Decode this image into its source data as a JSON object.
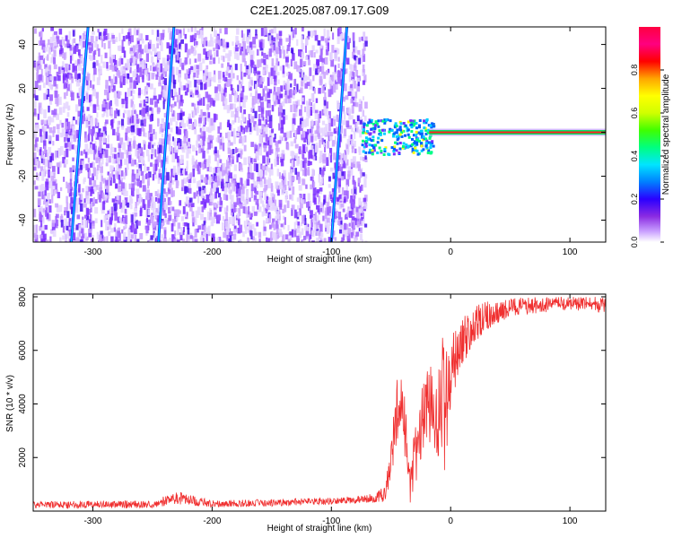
{
  "title": "C2E1.2025.087.09.17.G09",
  "chart_data": [
    {
      "type": "heatmap",
      "xlabel": "Height of straight line (km)",
      "ylabel": "Frequency (Hz)",
      "xlim": [
        -350,
        130
      ],
      "ylim": [
        -50,
        48
      ],
      "xticks": [
        -300,
        -200,
        -100,
        0,
        100
      ],
      "yticks": [
        -40,
        -20,
        0,
        20,
        40
      ],
      "colorbar": {
        "label": "Normalized spectral amplitude",
        "range": [
          0,
          1
        ],
        "ticks": [
          "0.0",
          "0.2",
          "0.4",
          "0.6",
          "0.8"
        ],
        "colormap": [
          "#ffffff",
          "#c9a0ff",
          "#8a2be2",
          "#2a00ff",
          "#0080ff",
          "#00e5ff",
          "#00ff80",
          "#40ff00",
          "#d0ff00",
          "#ffff00",
          "#ffa500",
          "#ff0000",
          "#ff0080",
          "#ff0040"
        ]
      },
      "noise_region_x": [
        -350,
        -72
      ],
      "aliased_lines": [
        {
          "x_start": -318,
          "x_end": -304
        },
        {
          "x_start": -245,
          "x_end": -232
        },
        {
          "x_start": -100,
          "x_end": -87
        }
      ],
      "tone_line": {
        "x_start": -18,
        "x_end": 130,
        "frequency": 0
      }
    },
    {
      "type": "line",
      "xlabel": "Height of straight line (km)",
      "ylabel": "SNR (10 * v/v)",
      "xlim": [
        -350,
        130
      ],
      "ylim": [
        0,
        8100
      ],
      "xticks": [
        -300,
        -200,
        -100,
        0,
        100
      ],
      "yticks": [
        2000,
        4000,
        6000,
        8000
      ],
      "color": "#f03030",
      "envelope": {
        "x": [
          -350,
          -300,
          -250,
          -230,
          -200,
          -150,
          -100,
          -70,
          -55,
          -50,
          -45,
          -42,
          -38,
          -35,
          -32,
          -28,
          -25,
          -20,
          -15,
          -12,
          -8,
          -5,
          0,
          5,
          10,
          20,
          30,
          40,
          50,
          60,
          80,
          100,
          130
        ],
        "low": [
          100,
          110,
          120,
          250,
          150,
          180,
          250,
          300,
          350,
          1200,
          2500,
          3200,
          1500,
          300,
          200,
          1200,
          1800,
          2500,
          2500,
          1500,
          2000,
          1500,
          3500,
          4800,
          5400,
          6100,
          6700,
          7000,
          7200,
          7300,
          7400,
          7500,
          7400
        ],
        "high": [
          350,
          400,
          380,
          750,
          400,
          450,
          500,
          600,
          900,
          2500,
          5300,
          5100,
          4300,
          1600,
          2500,
          3800,
          4500,
          5200,
          5600,
          5000,
          7000,
          5800,
          6400,
          7000,
          7300,
          7600,
          7900,
          7800,
          8000,
          8000,
          8000,
          8000,
          8000
        ]
      }
    }
  ]
}
